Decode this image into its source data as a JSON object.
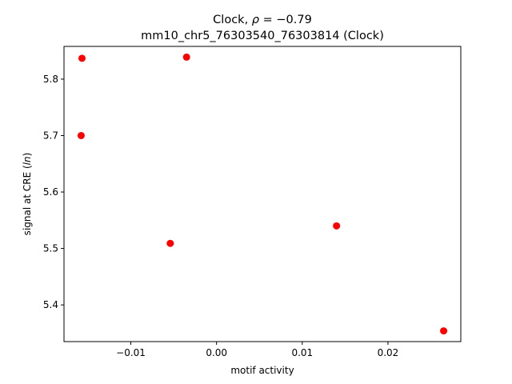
{
  "chart_data": {
    "type": "scatter",
    "title_line1_prefix": "Clock, ",
    "title_rho_symbol": "ρ",
    "title_rho_value": " = −0.79",
    "title_line2": "mm10_chr5_76303540_76303814 (Clock)",
    "xlabel": "motif activity",
    "ylabel_prefix": "signal at CRE (",
    "ylabel_italic": "ln",
    "ylabel_suffix": ")",
    "xlim": [
      -0.0178,
      0.0285
    ],
    "ylim": [
      5.335,
      5.858
    ],
    "x_ticks": [
      -0.01,
      0.0,
      0.01,
      0.02
    ],
    "x_tick_labels": [
      "−0.01",
      "0.00",
      "0.01",
      "0.02"
    ],
    "y_ticks": [
      5.4,
      5.5,
      5.6,
      5.7,
      5.8
    ],
    "y_tick_labels": [
      "5.4",
      "5.5",
      "5.6",
      "5.7",
      "5.8"
    ],
    "marker_color": "#ff0000",
    "grid": false,
    "points": [
      {
        "x": -0.0157,
        "y": 5.837
      },
      {
        "x": -0.0035,
        "y": 5.839
      },
      {
        "x": -0.0158,
        "y": 5.7
      },
      {
        "x": -0.0054,
        "y": 5.509
      },
      {
        "x": 0.014,
        "y": 5.54
      },
      {
        "x": 0.0265,
        "y": 5.354
      }
    ]
  }
}
